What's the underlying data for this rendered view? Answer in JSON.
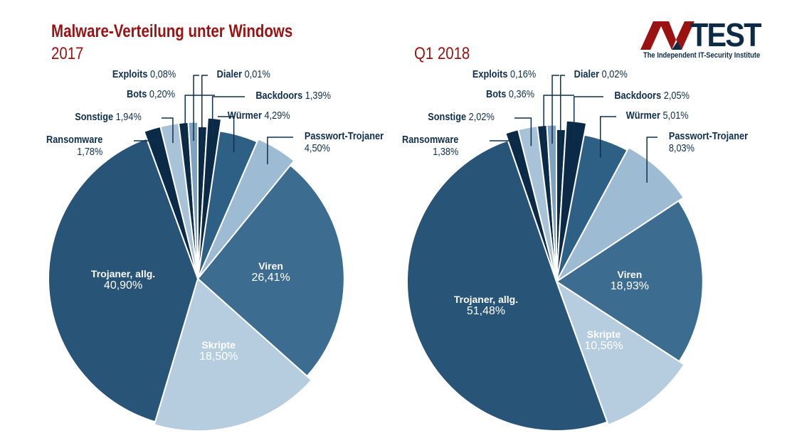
{
  "title": "Malware-Verteilung unter Windows",
  "logo": {
    "brand": "AV-TEST",
    "tagline": "The Independent IT-Security Institute",
    "colors": {
      "av": "#9b1212",
      "test": "#0e2b45"
    }
  },
  "chart_data": [
    {
      "type": "pie",
      "title": "2017",
      "categories": [
        "Dialer",
        "Backdoors",
        "Würmer",
        "Passwort-Trojaner",
        "Viren",
        "Skripte",
        "Trojaner, allg.",
        "Ransomware",
        "Sonstige",
        "Bots",
        "Exploits"
      ],
      "values": [
        0.01,
        1.39,
        4.29,
        4.5,
        26.41,
        18.5,
        40.9,
        1.78,
        1.94,
        0.2,
        0.08
      ],
      "labels": [
        "0,01%",
        "1,39%",
        "4,29%",
        "4,50%",
        "26,41%",
        "18,50%",
        "40,90%",
        "1,78%",
        "1,94%",
        "0,20%",
        "0,08%"
      ]
    },
    {
      "type": "pie",
      "title": "Q1 2018",
      "categories": [
        "Dialer",
        "Backdoors",
        "Würmer",
        "Passwort-Trojaner",
        "Viren",
        "Skripte",
        "Trojaner, allg.",
        "Ransomware",
        "Sonstige",
        "Bots",
        "Exploits"
      ],
      "values": [
        0.02,
        2.05,
        5.01,
        8.03,
        18.93,
        10.56,
        51.48,
        1.38,
        2.02,
        0.36,
        0.16
      ],
      "labels": [
        "0,02%",
        "2,05%",
        "5,01%",
        "8,03%",
        "18,93%",
        "10,56%",
        "51,48%",
        "1,38%",
        "2,02%",
        "0,36%",
        "0,16%"
      ]
    }
  ],
  "colors": [
    "#0b2a47",
    "#0b2a47",
    "#2e5f85",
    "#9dbbd2",
    "#3d6c91",
    "#b6cde0",
    "#285478",
    "#0b2a47",
    "#a8c3d8",
    "#0b2a47",
    "#7fa3c0"
  ]
}
